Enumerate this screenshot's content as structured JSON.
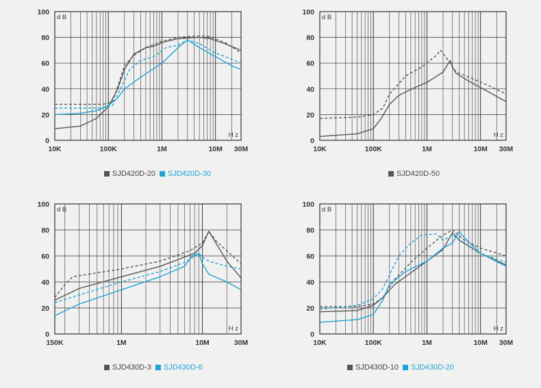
{
  "colors": {
    "gray": "#555555",
    "blue": "#1ca3d6",
    "grid": "#333333",
    "frame": "#333333"
  },
  "chart_data": [
    {
      "type": "line",
      "xscale": "log",
      "xlim": [
        10000,
        30000000
      ],
      "ylim": [
        0,
        100
      ],
      "yticks": [
        0,
        20,
        40,
        60,
        80,
        100
      ],
      "ylabel": "dB",
      "xunit": "Hz",
      "xticks": [
        {
          "v": 10000,
          "label": "10K"
        },
        {
          "v": 100000,
          "label": "100K"
        },
        {
          "v": 1000000,
          "label": "1M"
        },
        {
          "v": 10000000,
          "label": "10M"
        },
        {
          "v": 30000000,
          "label": "30M"
        }
      ],
      "legend": [
        {
          "name": "SJD420D-20",
          "color": "gray"
        },
        {
          "name": "SJD420D-30",
          "color": "blue"
        }
      ],
      "series": [
        {
          "name": "SJD420D-20 solid",
          "color": "gray",
          "dash": false,
          "points": [
            [
              10000,
              9
            ],
            [
              30000,
              11
            ],
            [
              60000,
              17
            ],
            [
              100000,
              26
            ],
            [
              150000,
              40
            ],
            [
              200000,
              55
            ],
            [
              300000,
              67
            ],
            [
              500000,
              72
            ],
            [
              700000,
              73
            ],
            [
              1000000,
              76
            ],
            [
              2000000,
              79
            ],
            [
              5000000,
              80
            ],
            [
              8000000,
              79
            ],
            [
              15000000,
              75
            ],
            [
              30000000,
              70
            ]
          ]
        },
        {
          "name": "SJD420D-20 dashed",
          "color": "gray",
          "dash": true,
          "points": [
            [
              10000,
              28
            ],
            [
              40000,
              28
            ],
            [
              80000,
              28
            ],
            [
              120000,
              30
            ],
            [
              150000,
              42
            ],
            [
              200000,
              58
            ],
            [
              300000,
              66
            ],
            [
              500000,
              72
            ],
            [
              1000000,
              77
            ],
            [
              2000000,
              80
            ],
            [
              4000000,
              81
            ],
            [
              7000000,
              81
            ],
            [
              15000000,
              76
            ],
            [
              30000000,
              68
            ]
          ]
        },
        {
          "name": "SJD420D-30 solid",
          "color": "blue",
          "dash": false,
          "points": [
            [
              10000,
              20
            ],
            [
              30000,
              21
            ],
            [
              60000,
              23
            ],
            [
              100000,
              27
            ],
            [
              150000,
              33
            ],
            [
              200000,
              40
            ],
            [
              400000,
              49
            ],
            [
              1000000,
              60
            ],
            [
              2000000,
              72
            ],
            [
              3000000,
              78
            ],
            [
              5000000,
              72
            ],
            [
              10000000,
              65
            ],
            [
              20000000,
              58
            ],
            [
              30000000,
              55
            ]
          ]
        },
        {
          "name": "SJD420D-30 dashed",
          "color": "blue",
          "dash": true,
          "points": [
            [
              10000,
              25
            ],
            [
              40000,
              25
            ],
            [
              80000,
              25
            ],
            [
              120000,
              27
            ],
            [
              160000,
              38
            ],
            [
              250000,
              55
            ],
            [
              400000,
              62
            ],
            [
              700000,
              65
            ],
            [
              1200000,
              72
            ],
            [
              2000000,
              74
            ],
            [
              3000000,
              78
            ],
            [
              5000000,
              75
            ],
            [
              10000000,
              68
            ],
            [
              20000000,
              63
            ],
            [
              30000000,
              60
            ]
          ]
        }
      ]
    },
    {
      "type": "line",
      "xscale": "log",
      "xlim": [
        10000,
        30000000
      ],
      "ylim": [
        0,
        100
      ],
      "yticks": [
        0,
        20,
        40,
        60,
        80,
        100
      ],
      "ylabel": "dB",
      "xunit": "Hz",
      "xticks": [
        {
          "v": 10000,
          "label": "10K"
        },
        {
          "v": 100000,
          "label": "100K"
        },
        {
          "v": 1000000,
          "label": "1M"
        },
        {
          "v": 10000000,
          "label": "10M"
        },
        {
          "v": 30000000,
          "label": "30M"
        }
      ],
      "legend": [
        {
          "name": "SJD420D-50",
          "color": "gray"
        }
      ],
      "series": [
        {
          "name": "SJD420D-50 solid",
          "color": "gray",
          "dash": false,
          "points": [
            [
              10000,
              3
            ],
            [
              50000,
              5
            ],
            [
              100000,
              9
            ],
            [
              140000,
              17
            ],
            [
              200000,
              28
            ],
            [
              300000,
              35
            ],
            [
              600000,
              41
            ],
            [
              1000000,
              45
            ],
            [
              2000000,
              53
            ],
            [
              2700000,
              62
            ],
            [
              3000000,
              57
            ],
            [
              3500000,
              52
            ],
            [
              6000000,
              46
            ],
            [
              15000000,
              37
            ],
            [
              30000000,
              30
            ]
          ]
        },
        {
          "name": "SJD420D-50 dashed",
          "color": "gray",
          "dash": true,
          "points": [
            [
              10000,
              17
            ],
            [
              50000,
              18
            ],
            [
              100000,
              20
            ],
            [
              150000,
              25
            ],
            [
              200000,
              36
            ],
            [
              400000,
              50
            ],
            [
              800000,
              57
            ],
            [
              1500000,
              66
            ],
            [
              1800000,
              70
            ],
            [
              2500000,
              62
            ],
            [
              3500000,
              53
            ],
            [
              8000000,
              47
            ],
            [
              15000000,
              42
            ],
            [
              30000000,
              36
            ]
          ]
        }
      ]
    },
    {
      "type": "line",
      "xscale": "log",
      "xlim": [
        150000,
        30000000
      ],
      "ylim": [
        0,
        100
      ],
      "yticks": [
        0,
        20,
        40,
        60,
        80,
        100
      ],
      "ylabel": "dB",
      "xunit": "Hz",
      "xticks": [
        {
          "v": 150000,
          "label": "150K"
        },
        {
          "v": 1000000,
          "label": "1M"
        },
        {
          "v": 10000000,
          "label": "10M"
        },
        {
          "v": 30000000,
          "label": "30M"
        }
      ],
      "legend": [
        {
          "name": "SJD430D-3",
          "color": "gray"
        },
        {
          "name": "SJD430D-6",
          "color": "blue"
        }
      ],
      "series": [
        {
          "name": "SJD430D-3 solid",
          "color": "gray",
          "dash": false,
          "points": [
            [
              150000,
              26
            ],
            [
              300000,
              35
            ],
            [
              1000000,
              44
            ],
            [
              3000000,
              52
            ],
            [
              8000000,
              62
            ],
            [
              10000000,
              68
            ],
            [
              12000000,
              79
            ],
            [
              14000000,
              72
            ],
            [
              20000000,
              56
            ],
            [
              30000000,
              43
            ]
          ]
        },
        {
          "name": "SJD430D-3 dashed",
          "color": "gray",
          "dash": true,
          "points": [
            [
              150000,
              28
            ],
            [
              200000,
              38
            ],
            [
              250000,
              44
            ],
            [
              1000000,
              50
            ],
            [
              3000000,
              56
            ],
            [
              7000000,
              64
            ],
            [
              10000000,
              70
            ],
            [
              12000000,
              79
            ],
            [
              15000000,
              71
            ],
            [
              20000000,
              64
            ],
            [
              30000000,
              54
            ]
          ]
        },
        {
          "name": "SJD430D-6 solid",
          "color": "blue",
          "dash": false,
          "points": [
            [
              150000,
              14
            ],
            [
              300000,
              23
            ],
            [
              1000000,
              34
            ],
            [
              3000000,
              44
            ],
            [
              6000000,
              52
            ],
            [
              7500000,
              60
            ],
            [
              9000000,
              62
            ],
            [
              10000000,
              54
            ],
            [
              12000000,
              46
            ],
            [
              20000000,
              40
            ],
            [
              30000000,
              34
            ]
          ]
        },
        {
          "name": "SJD430D-6 dashed",
          "color": "blue",
          "dash": true,
          "points": [
            [
              150000,
              24
            ],
            [
              300000,
              30
            ],
            [
              1000000,
              40
            ],
            [
              3000000,
              48
            ],
            [
              6000000,
              55
            ],
            [
              8000000,
              60
            ],
            [
              9000000,
              62
            ],
            [
              10000000,
              59
            ],
            [
              12000000,
              56
            ],
            [
              20000000,
              52
            ],
            [
              30000000,
              50
            ]
          ]
        }
      ]
    },
    {
      "type": "line",
      "xscale": "log",
      "xlim": [
        10000,
        30000000
      ],
      "ylim": [
        0,
        100
      ],
      "yticks": [
        0,
        20,
        40,
        60,
        80,
        100
      ],
      "ylabel": "dB",
      "xunit": "Hz",
      "xticks": [
        {
          "v": 10000,
          "label": "10K"
        },
        {
          "v": 100000,
          "label": "100K"
        },
        {
          "v": 1000000,
          "label": "1M"
        },
        {
          "v": 10000000,
          "label": "10M"
        },
        {
          "v": 30000000,
          "label": "30M"
        }
      ],
      "legend": [
        {
          "name": "SJD430D-10",
          "color": "gray"
        },
        {
          "name": "SJD430D-20",
          "color": "blue"
        }
      ],
      "series": [
        {
          "name": "SJD430D-10 solid",
          "color": "gray",
          "dash": false,
          "points": [
            [
              10000,
              17
            ],
            [
              50000,
              18
            ],
            [
              100000,
              22
            ],
            [
              150000,
              28
            ],
            [
              250000,
              38
            ],
            [
              500000,
              47
            ],
            [
              1000000,
              56
            ],
            [
              2000000,
              65
            ],
            [
              3000000,
              78
            ],
            [
              4000000,
              72
            ],
            [
              10000000,
              62
            ],
            [
              30000000,
              53
            ]
          ]
        },
        {
          "name": "SJD430D-10 dashed",
          "color": "gray",
          "dash": true,
          "points": [
            [
              10000,
              21
            ],
            [
              50000,
              21
            ],
            [
              100000,
              23
            ],
            [
              150000,
              28
            ],
            [
              250000,
              42
            ],
            [
              500000,
              55
            ],
            [
              1000000,
              66
            ],
            [
              2000000,
              76
            ],
            [
              3000000,
              80
            ],
            [
              5000000,
              72
            ],
            [
              10000000,
              66
            ],
            [
              30000000,
              60
            ]
          ]
        },
        {
          "name": "SJD430D-20 solid",
          "color": "blue",
          "dash": false,
          "points": [
            [
              10000,
              9
            ],
            [
              50000,
              11
            ],
            [
              100000,
              15
            ],
            [
              150000,
              26
            ],
            [
              200000,
              38
            ],
            [
              400000,
              48
            ],
            [
              1000000,
              56
            ],
            [
              2000000,
              66
            ],
            [
              3000000,
              70
            ],
            [
              4000000,
              79
            ],
            [
              5000000,
              74
            ],
            [
              10000000,
              62
            ],
            [
              30000000,
              52
            ]
          ]
        },
        {
          "name": "SJD430D-20 dashed",
          "color": "blue",
          "dash": true,
          "points": [
            [
              10000,
              19
            ],
            [
              50000,
              22
            ],
            [
              100000,
              27
            ],
            [
              150000,
              35
            ],
            [
              300000,
              60
            ],
            [
              500000,
              70
            ],
            [
              800000,
              76
            ],
            [
              1500000,
              77
            ],
            [
              2000000,
              72
            ],
            [
              3000000,
              76
            ],
            [
              5000000,
              70
            ],
            [
              10000000,
              62
            ],
            [
              30000000,
              55
            ]
          ]
        }
      ]
    }
  ]
}
